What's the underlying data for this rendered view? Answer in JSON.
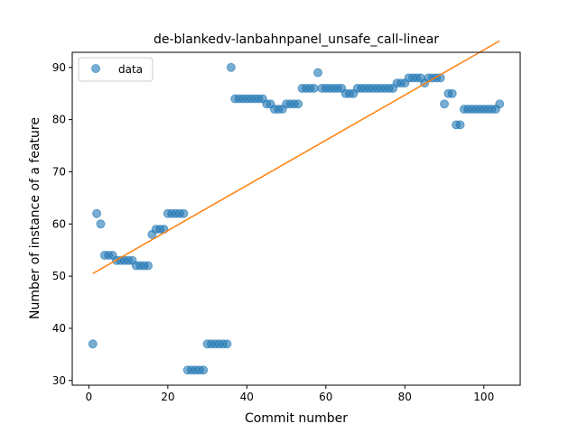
{
  "chart_data": {
    "type": "scatter",
    "title": "de-blankedv-lanbahnpanel_unsafe_call-linear",
    "xlabel": "Commit number",
    "ylabel": "Number of instance of a feature",
    "xlim": [
      -4.2,
      109.2
    ],
    "ylim": [
      29.1,
      92.9
    ],
    "xticks": [
      0,
      20,
      40,
      60,
      80,
      100
    ],
    "yticks": [
      30,
      40,
      50,
      60,
      70,
      80,
      90
    ],
    "legend": {
      "placement": "top-left",
      "entries": [
        "data"
      ]
    },
    "grid": false,
    "colors": {
      "data": "#1f77b4",
      "fit": "#ff7f0e"
    },
    "series": [
      {
        "name": "data",
        "kind": "scatter",
        "x": [
          1,
          2,
          3,
          4,
          5,
          6,
          7,
          8,
          9,
          10,
          11,
          12,
          13,
          14,
          15,
          16,
          17,
          18,
          19,
          20,
          21,
          22,
          23,
          24,
          25,
          26,
          27,
          28,
          29,
          30,
          31,
          32,
          33,
          34,
          35,
          36,
          37,
          38,
          39,
          40,
          41,
          42,
          43,
          44,
          45,
          46,
          47,
          48,
          49,
          50,
          51,
          52,
          53,
          54,
          55,
          56,
          57,
          58,
          59,
          60,
          61,
          62,
          63,
          64,
          65,
          66,
          67,
          68,
          69,
          70,
          71,
          72,
          73,
          74,
          75,
          76,
          77,
          78,
          79,
          80,
          81,
          82,
          83,
          84,
          85,
          86,
          87,
          88,
          89,
          90,
          91,
          92,
          93,
          94,
          95,
          96,
          97,
          98,
          99,
          100,
          101,
          102,
          103,
          104
        ],
        "y": [
          37,
          62,
          60,
          54,
          54,
          54,
          53,
          53,
          53,
          53,
          53,
          52,
          52,
          52,
          52,
          58,
          59,
          59,
          59,
          62,
          62,
          62,
          62,
          62,
          32,
          32,
          32,
          32,
          32,
          37,
          37,
          37,
          37,
          37,
          37,
          90,
          84,
          84,
          84,
          84,
          84,
          84,
          84,
          84,
          83,
          83,
          82,
          82,
          82,
          83,
          83,
          83,
          83,
          86,
          86,
          86,
          86,
          89,
          86,
          86,
          86,
          86,
          86,
          86,
          85,
          85,
          85,
          86,
          86,
          86,
          86,
          86,
          86,
          86,
          86,
          86,
          86,
          87,
          87,
          87,
          88,
          88,
          88,
          88,
          87,
          88,
          88,
          88,
          88,
          83,
          85,
          85,
          79,
          79,
          82,
          82,
          82,
          82,
          82,
          82,
          82,
          82,
          82,
          83
        ]
      },
      {
        "name": "",
        "kind": "line",
        "x": [
          1,
          104
        ],
        "y": [
          50.5,
          95.1
        ]
      }
    ]
  }
}
